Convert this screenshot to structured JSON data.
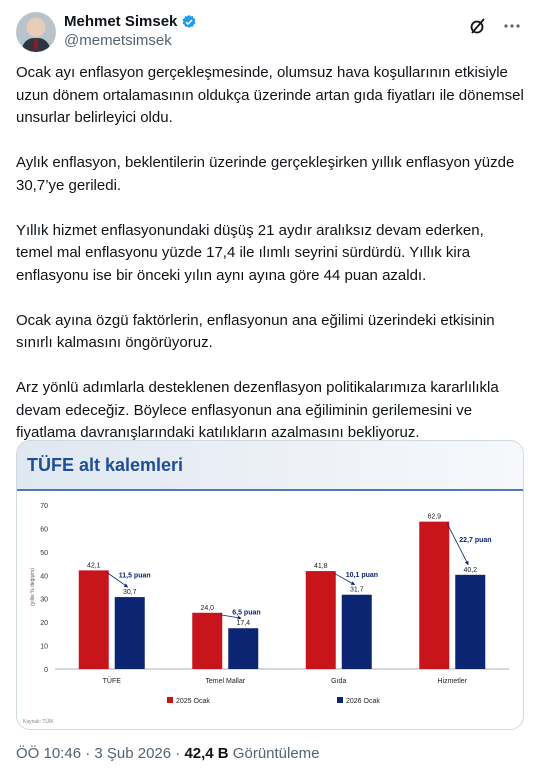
{
  "author": {
    "name": "Mehmet Simsek",
    "handle": "@memetsimsek"
  },
  "paragraphs": [
    "Ocak ayı enflasyon gerçekleşmesinde, olumsuz hava koşullarının etkisiyle uzun dönem ortalamasının oldukça üzerinde artan gıda fiyatları ile dönemsel unsurlar belirleyici oldu.",
    "Aylık enflasyon, beklentilerin üzerinde gerçekleşirken yıllık enflasyon yüzde 30,7’ye geriledi.",
    "Yıllık hizmet enflasyonundaki düşüş 21 aydır aralıksız devam ederken, temel mal enflasyonu yüzde 17,4 ile ılımlı seyrini sürdürdü. Yıllık kira enflasyonu ise bir önceki yılın aynı ayına göre 44 puan azaldı.",
    "Ocak ayına özgü faktörlerin, enflasyonun ana eğilimi üzerindeki etkisinin sınırlı kalmasını öngörüyoruz.",
    "Arz yönlü adımlarla desteklenen dezenflasyon politikalarımıza kararlılıkla devam edeceğiz. Böylece enflasyonun ana eğiliminin gerilemesini ve fiyatlama davranışlarındaki katılıkların azalmasını bekliyoruz."
  ],
  "card": {
    "title": "TÜFE alt kalemleri",
    "source": "Kaynak: TÜİK"
  },
  "chart_data": {
    "type": "bar",
    "title": "TÜFE alt kalemleri",
    "ylabel": "(yıllık % değişim)",
    "ylim": [
      0,
      70
    ],
    "yticks": [
      0,
      10,
      20,
      30,
      40,
      50,
      60,
      70
    ],
    "grid": false,
    "legend": "bottom",
    "categories": [
      "TÜFE",
      "Temel Mallar",
      "Gıda",
      "Hizmetler"
    ],
    "series": [
      {
        "name": "2025 Ocak",
        "color": "#c8151b",
        "values": [
          42.1,
          24.0,
          41.8,
          62.9
        ],
        "labels": [
          "42,1",
          "24,0",
          "41,8",
          "62,9"
        ]
      },
      {
        "name": "2026 Ocak",
        "color": "#0b2573",
        "values": [
          30.7,
          17.4,
          31.7,
          40.2
        ],
        "labels": [
          "30,7",
          "17,4",
          "31,7",
          "40,2"
        ]
      }
    ],
    "annotations": [
      "11,5 puan",
      "6,5 puan",
      "10,1 puan",
      "22,7 puan"
    ]
  },
  "footer": {
    "time": "ÖÖ 10:46 · 3 Şub 2026 · ",
    "views": "42,4 B",
    "views_label": " Görüntüleme"
  },
  "colors": {
    "text": "#0f1419",
    "muted": "#536471",
    "verified": "#1d9bf0",
    "title_blue": "#1f4e98"
  }
}
